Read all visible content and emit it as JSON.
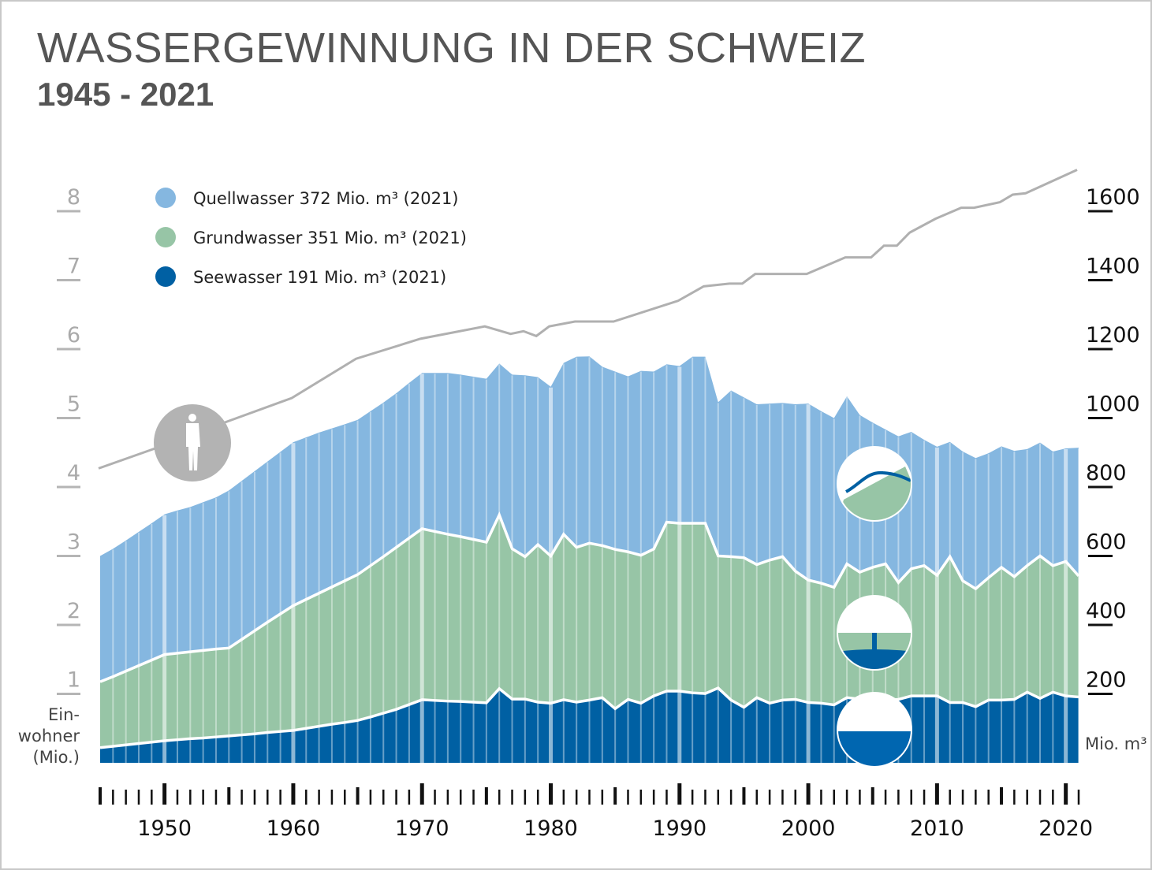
{
  "header": {
    "title": "WASSERGEWINNUNG IN DER SCHWEIZ",
    "subtitle": "1945 - 2021"
  },
  "legend": [
    {
      "label": "Quellwasser 372 Mio. m³ (2021)",
      "color": "#85b7e0"
    },
    {
      "label": "Grundwasser 351 Mio. m³ (2021)",
      "color": "#97c5a6"
    },
    {
      "label": "Seewasser 191 Mio. m³ (2021)",
      "color": "#0060a3"
    }
  ],
  "icons": [
    "person-icon",
    "spring-icon",
    "groundwater-well-icon",
    "lake-icon"
  ],
  "chart_data": {
    "type": "area",
    "stacked": true,
    "title": "WASSERGEWINNUNG IN DER SCHWEIZ",
    "subtitle": "1945 - 2021",
    "x": [
      1945,
      1946,
      1947,
      1948,
      1949,
      1950,
      1951,
      1952,
      1953,
      1954,
      1955,
      1956,
      1957,
      1958,
      1959,
      1960,
      1961,
      1962,
      1963,
      1964,
      1965,
      1966,
      1967,
      1968,
      1969,
      1970,
      1971,
      1972,
      1973,
      1974,
      1975,
      1976,
      1977,
      1978,
      1979,
      1980,
      1981,
      1982,
      1983,
      1984,
      1985,
      1986,
      1987,
      1988,
      1989,
      1990,
      1991,
      1992,
      1993,
      1994,
      1995,
      1996,
      1997,
      1998,
      1999,
      2000,
      2001,
      2002,
      2003,
      2004,
      2005,
      2006,
      2007,
      2008,
      2009,
      2010,
      2011,
      2012,
      2013,
      2014,
      2015,
      2016,
      2017,
      2018,
      2019,
      2020,
      2021
    ],
    "series": [
      {
        "name": "Seewasser",
        "color": "#0060a3",
        "values": [
          44,
          48,
          52,
          56,
          60,
          64,
          67,
          70,
          72,
          75,
          78,
          81,
          84,
          88,
          91,
          94,
          100,
          106,
          112,
          117,
          123,
          133,
          144,
          155,
          169,
          183,
          181,
          179,
          178,
          176,
          174,
          215,
          185,
          185,
          176,
          173,
          183,
          176,
          182,
          189,
          157,
          184,
          173,
          194,
          208,
          208,
          203,
          201,
          217,
          182,
          161,
          189,
          173,
          182,
          184,
          175,
          173,
          168,
          189,
          185,
          182,
          182,
          184,
          194,
          194,
          194,
          175,
          175,
          163,
          182,
          182,
          184,
          205,
          187,
          205,
          194,
          191
        ]
      },
      {
        "name": "Grundwasser",
        "color": "#97c5a6",
        "values": [
          191,
          202,
          214,
          226,
          238,
          250,
          251,
          252,
          254,
          255,
          255,
          277,
          299,
          320,
          341,
          362,
          374,
          386,
          398,
          411,
          423,
          439,
          454,
          470,
          483,
          496,
          490,
          484,
          478,
          472,
          466,
          504,
          436,
          413,
          457,
          427,
          480,
          449,
          455,
          441,
          462,
          428,
          429,
          426,
          490,
          487,
          492,
          494,
          383,
          416,
          434,
          386,
          415,
          416,
          372,
          355,
          348,
          341,
          388,
          368,
          385,
          395,
          339,
          369,
          378,
          350,
          423,
          353,
          342,
          355,
          385,
          356,
          367,
          413,
          367,
          390,
          351
        ]
      },
      {
        "name": "Quellwasser",
        "color": "#85b7e0",
        "values": [
          365,
          371,
          379,
          388,
          397,
          407,
          414,
          420,
          430,
          440,
          457,
          460,
          463,
          466,
          470,
          474,
          470,
          466,
          460,
          454,
          449,
          448,
          447,
          447,
          450,
          452,
          460,
          468,
          470,
          472,
          474,
          439,
          505,
          526,
          486,
          491,
          497,
          553,
          542,
          519,
          516,
          509,
          535,
          515,
          458,
          456,
          483,
          483,
          446,
          482,
          465,
          465,
          454,
          446,
          484,
          512,
          499,
          491,
          486,
          456,
          420,
          390,
          424,
          397,
          365,
          373,
          333,
          375,
          379,
          361,
          351,
          365,
          338,
          329,
          331,
          328,
          372
        ]
      }
    ],
    "population": {
      "label": [
        "Ein-",
        "wohner",
        "(Mio.)"
      ],
      "color": "#b0b0b0",
      "x": [
        1945,
        1950,
        1955,
        1960,
        1965,
        1970,
        1975,
        1977,
        1978,
        1979,
        1980,
        1982,
        1985,
        1990,
        1992,
        1994,
        1995,
        1996,
        2000,
        2003,
        2005,
        2006,
        2007,
        2008,
        2010,
        2012,
        2013,
        2015,
        2016,
        2017,
        2021
      ],
      "values": [
        4.27,
        4.6,
        4.95,
        5.29,
        5.86,
        6.15,
        6.33,
        6.22,
        6.26,
        6.19,
        6.33,
        6.4,
        6.4,
        6.7,
        6.91,
        6.95,
        6.95,
        7.09,
        7.09,
        7.33,
        7.33,
        7.5,
        7.5,
        7.69,
        7.89,
        8.05,
        8.05,
        8.13,
        8.24,
        8.26,
        8.6
      ]
    },
    "y_right": {
      "label": "Mio. m³",
      "ticks": [
        "200",
        "400",
        "600",
        "800",
        "1000",
        "1200",
        "1400",
        "1600"
      ],
      "range": [
        0,
        1600
      ]
    },
    "y_left": {
      "ticks": [
        "1",
        "2",
        "3",
        "4",
        "5",
        "6",
        "7",
        "8"
      ],
      "range": [
        0,
        8
      ]
    },
    "x_ticks": [
      "1950",
      "1960",
      "1970",
      "1980",
      "1990",
      "2000",
      "2010",
      "2020"
    ],
    "xlim": [
      1945,
      2021
    ],
    "legend_position": "top-left",
    "grid": false
  }
}
